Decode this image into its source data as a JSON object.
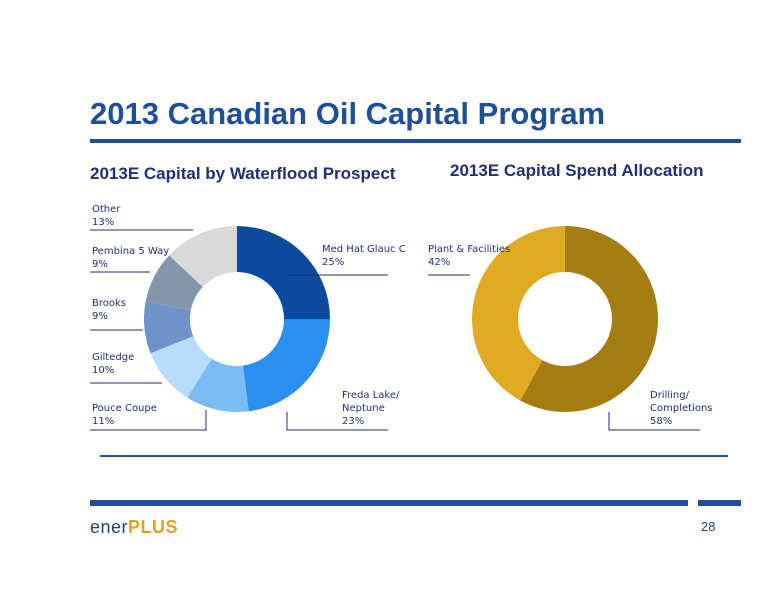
{
  "title": "2013 Canadian Oil Capital Program",
  "page_number": "28",
  "logo": {
    "part1": "ener",
    "part2": "PLUS"
  },
  "chart_data": [
    {
      "type": "pie",
      "title": "2013E Capital by Waterflood Prospect",
      "donut": true,
      "slices": [
        {
          "label": "Med Hat Glauc C",
          "value_text": "25%",
          "value": 25,
          "color": "#0b4a9c"
        },
        {
          "label": "Freda Lake/ Neptune",
          "value_text": "23%",
          "value": 23,
          "color": "#2b8ff0"
        },
        {
          "label": "Pouce Coupe",
          "value_text": "11%",
          "value": 11,
          "color": "#7bbcf5"
        },
        {
          "label": "Giltedge",
          "value_text": "10%",
          "value": 10,
          "color": "#b9dcfb"
        },
        {
          "label": "Brooks",
          "value_text": "9%",
          "value": 9,
          "color": "#6f92c8"
        },
        {
          "label": "Pembina 5 Way",
          "value_text": "9%",
          "value": 9,
          "color": "#8496ab"
        },
        {
          "label": "Other",
          "value_text": "13%",
          "value": 13,
          "color": "#d9d9d9"
        }
      ]
    },
    {
      "type": "pie",
      "title": "2013E Capital Spend Allocation",
      "donut": true,
      "slices": [
        {
          "label": "Drilling/ Completions",
          "value_text": "58%",
          "value": 58,
          "color": "#a67d12"
        },
        {
          "label": "Plant & Facilities",
          "value_text": "42%",
          "value": 42,
          "color": "#e0aa22"
        }
      ]
    }
  ]
}
